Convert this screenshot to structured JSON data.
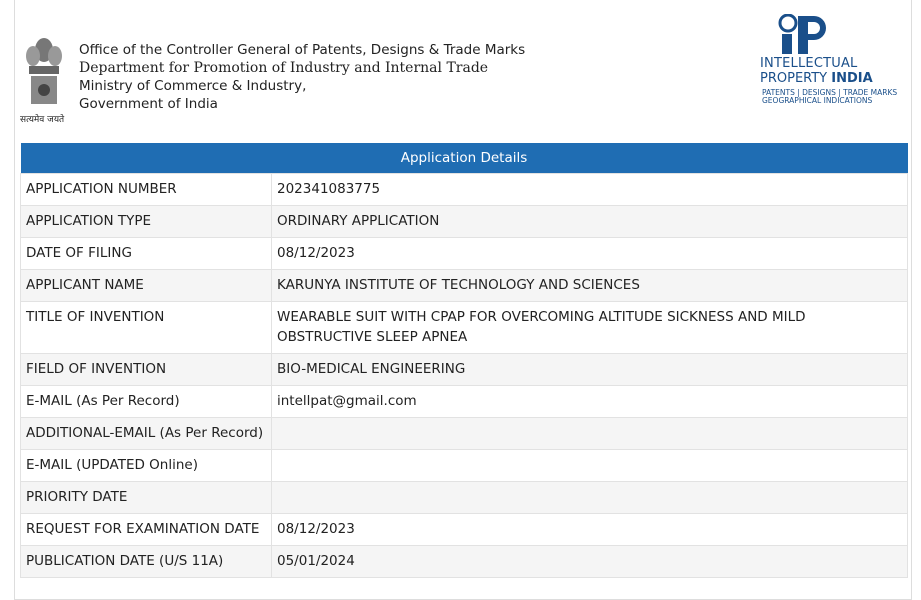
{
  "header": {
    "lines": [
      "Office of the Controller General of Patents, Designs & Trade Marks",
      "Department for Promotion of Industry and Internal Trade",
      "Ministry of Commerce & Industry,",
      "Government of India"
    ],
    "emblem_caption": "सत्यमेव जयते"
  },
  "logo": {
    "line1": "INTELLECTUAL",
    "line2a": "PROPERTY",
    "line2b": "INDIA",
    "line3": "PATENTS | DESIGNS | TRADE MARKS",
    "line4": "GEOGRAPHICAL INDICATIONS"
  },
  "table": {
    "title": "Application Details",
    "rows": [
      {
        "label": "APPLICATION NUMBER",
        "value": "202341083775"
      },
      {
        "label": "APPLICATION TYPE",
        "value": "ORDINARY APPLICATION"
      },
      {
        "label": "DATE OF FILING",
        "value": "08/12/2023"
      },
      {
        "label": "APPLICANT NAME",
        "value": "KARUNYA INSTITUTE OF TECHNOLOGY AND SCIENCES"
      },
      {
        "label": "TITLE OF INVENTION",
        "value": "WEARABLE SUIT WITH CPAP FOR OVERCOMING ALTITUDE SICKNESS AND MILD OBSTRUCTIVE SLEEP APNEA"
      },
      {
        "label": "FIELD OF INVENTION",
        "value": "BIO-MEDICAL ENGINEERING"
      },
      {
        "label": "E-MAIL (As Per Record)",
        "value": "intellpat@gmail.com"
      },
      {
        "label": "ADDITIONAL-EMAIL (As Per Record)"
      },
      {
        "label": "E-MAIL (UPDATED Online)"
      },
      {
        "label": "PRIORITY DATE"
      },
      {
        "label": "REQUEST FOR EXAMINATION DATE",
        "value": "08/12/2023"
      },
      {
        "label": "PUBLICATION DATE (U/S 11A)",
        "value": "05/01/2024"
      }
    ]
  }
}
